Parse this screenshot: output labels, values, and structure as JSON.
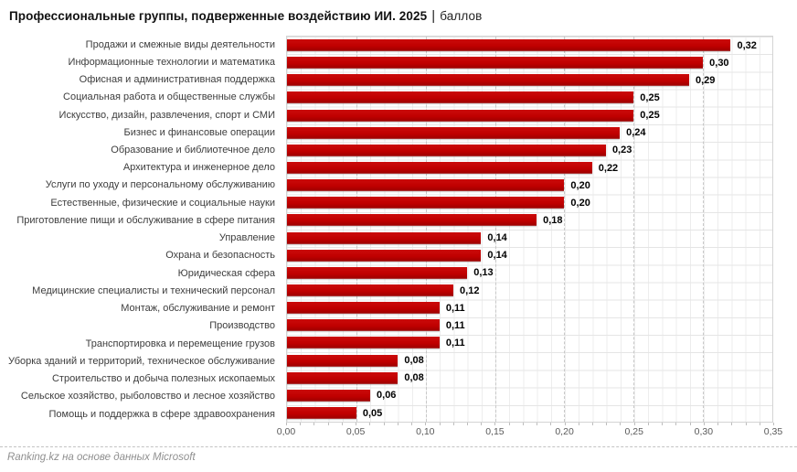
{
  "title": {
    "main": "Профессиональные группы, подверженные воздействию ИИ. 2025",
    "separator": "|",
    "suffix": "баллов"
  },
  "footer": {
    "source": "Ranking.kz на основе данных Microsoft"
  },
  "colors": {
    "bar": "#c00000",
    "title_text": "#111111",
    "category_text": "#3d3d3d",
    "tick_text": "#595959"
  },
  "chart_data": {
    "type": "bar",
    "orientation": "horizontal",
    "title": "Профессиональные группы, подверженные воздействию ИИ. 2025 | баллов",
    "xlabel": "",
    "ylabel": "",
    "xlim": [
      0,
      0.35
    ],
    "grid": true,
    "legend": false,
    "categories": [
      "Продажи и смежные виды деятельности",
      "Информационные технологии и математика",
      "Офисная и административная поддержка",
      "Социальная работа и общественные службы",
      "Искусство, дизайн, развлечения, спорт и СМИ",
      "Бизнес и финансовые операции",
      "Образование и библиотечное дело",
      "Архитектура и инженерное дело",
      "Услуги по уходу и персональному обслуживанию",
      "Естественные, физические и социальные науки",
      "Приготовление пищи и обслуживание в сфере питания",
      "Управление",
      "Охрана и безопасность",
      "Юридическая сфера",
      "Медицинские специалисты и технический персонал",
      "Монтаж, обслуживание и ремонт",
      "Производство",
      "Транспортировка и перемещение грузов",
      "Уборка зданий и территорий, техническое обслуживание",
      "Строительство и добыча полезных ископаемых",
      "Сельское хозяйство, рыболовство и лесное хозяйство",
      "Помощь и поддержка в сфере здравоохранения"
    ],
    "values": [
      0.32,
      0.3,
      0.29,
      0.25,
      0.25,
      0.24,
      0.23,
      0.22,
      0.2,
      0.2,
      0.18,
      0.14,
      0.14,
      0.13,
      0.12,
      0.11,
      0.11,
      0.11,
      0.08,
      0.08,
      0.06,
      0.05
    ],
    "value_labels": [
      "0,32",
      "0,30",
      "0,29",
      "0,25",
      "0,25",
      "0,24",
      "0,23",
      "0,22",
      "0,20",
      "0,20",
      "0,18",
      "0,14",
      "0,14",
      "0,13",
      "0,12",
      "0,11",
      "0,11",
      "0,11",
      "0,08",
      "0,08",
      "0,06",
      "0,05"
    ],
    "x_ticks": [
      "0,00",
      "0,05",
      "0,10",
      "0,15",
      "0,20",
      "0,25",
      "0,30",
      "0,35"
    ],
    "minor_tick_step": 0.01,
    "major_grid_step": 0.05
  }
}
